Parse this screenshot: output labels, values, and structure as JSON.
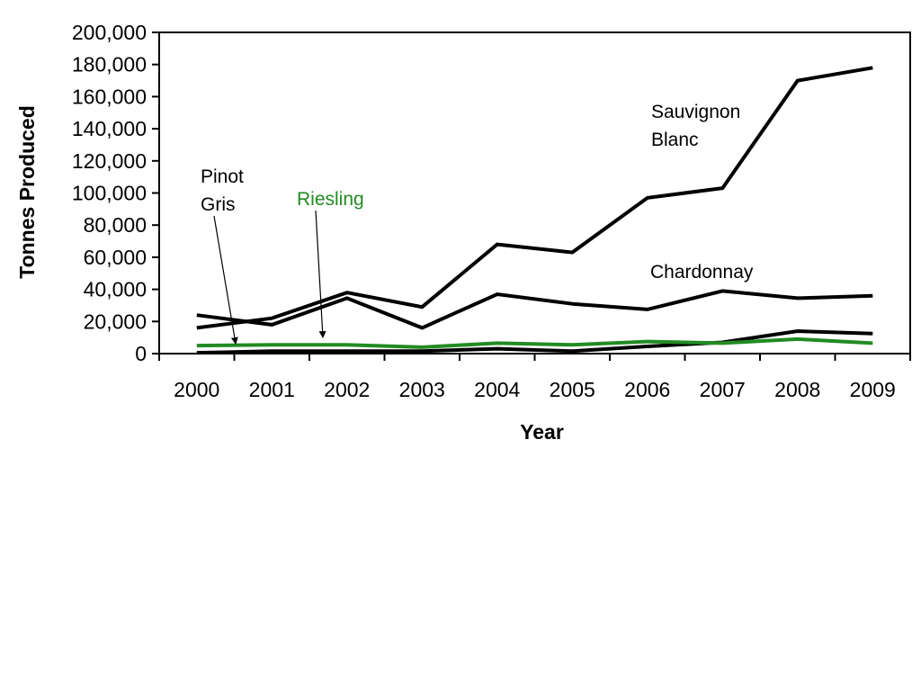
{
  "chart_data": {
    "type": "line",
    "title": "",
    "xlabel": "Year",
    "ylabel": "Tonnes Produced",
    "categories": [
      "2000",
      "2001",
      "2002",
      "2003",
      "2004",
      "2005",
      "2006",
      "2007",
      "2008",
      "2009"
    ],
    "ylim": [
      0,
      200000
    ],
    "yticks": [
      0,
      20000,
      40000,
      60000,
      80000,
      100000,
      120000,
      140000,
      160000,
      180000,
      200000
    ],
    "ytick_labels": [
      "0",
      "20,000",
      "40,000",
      "60,000",
      "80,000",
      "100,000",
      "120,000",
      "140,000",
      "160,000",
      "180,000",
      "200,000"
    ],
    "grid": false,
    "legend": "none",
    "series": [
      {
        "name": "Sauvignon Blanc",
        "color": "#000000",
        "values": [
          16000,
          22000,
          38000,
          29000,
          68000,
          63000,
          97000,
          103000,
          170000,
          178000
        ]
      },
      {
        "name": "Chardonnay",
        "color": "#000000",
        "values": [
          24000,
          18000,
          34500,
          16000,
          37000,
          31000,
          27500,
          39000,
          34500,
          36000
        ]
      },
      {
        "name": "Pinot Gris",
        "color": "#000000",
        "values": [
          500,
          1500,
          1500,
          1500,
          3000,
          1500,
          4500,
          7000,
          14000,
          12500
        ]
      },
      {
        "name": "Riesling",
        "color": "#228B22",
        "values": [
          5000,
          5500,
          5500,
          4000,
          6500,
          5500,
          7500,
          6500,
          9000,
          6500
        ]
      }
    ],
    "annotations": [
      {
        "id": "sauv",
        "lines": [
          "Sauvignon",
          "Blanc"
        ],
        "color": "#000000"
      },
      {
        "id": "chard",
        "lines": [
          "Chardonnay"
        ],
        "color": "#000000"
      },
      {
        "id": "pinot",
        "lines": [
          "Pinot",
          "Gris"
        ],
        "color": "#000000"
      },
      {
        "id": "ries",
        "lines": [
          "Riesling"
        ],
        "color": "#228B22"
      }
    ]
  }
}
